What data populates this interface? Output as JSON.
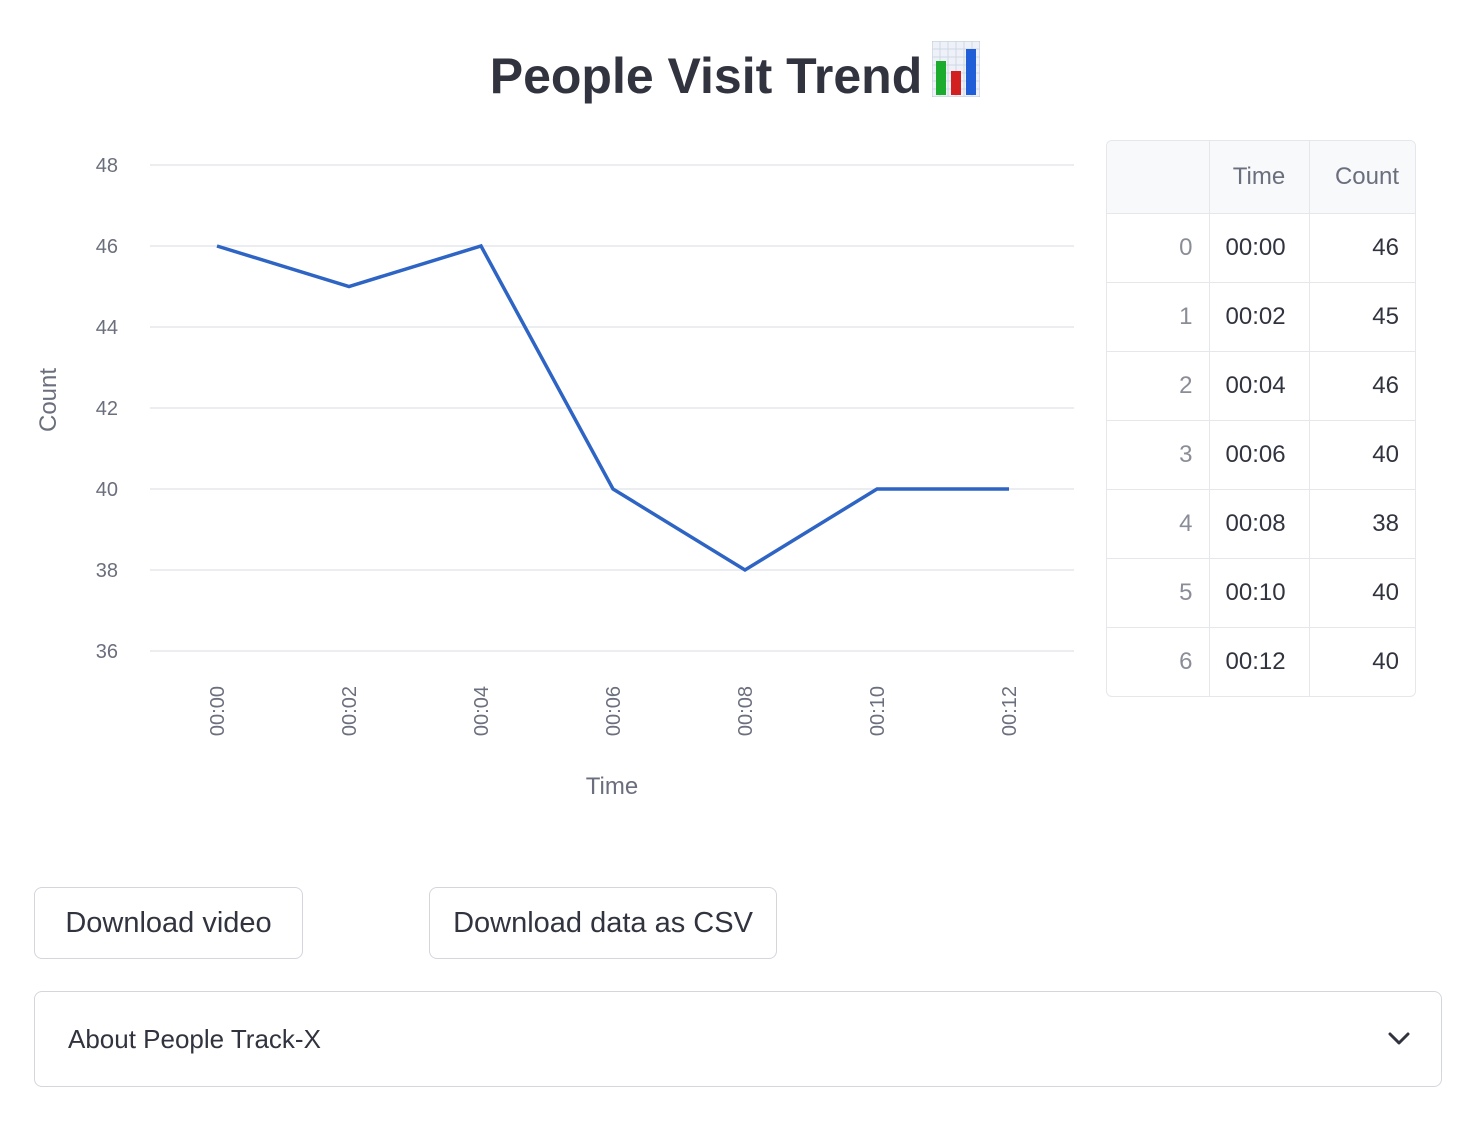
{
  "header": {
    "title": "People Visit Trend",
    "title_icon": "bar-chart-emoji-icon"
  },
  "chart_data": {
    "type": "line",
    "x": [
      "00:00",
      "00:02",
      "00:04",
      "00:06",
      "00:08",
      "00:10",
      "00:12"
    ],
    "series": [
      {
        "values": [
          46,
          45,
          46,
          40,
          38,
          40,
          40
        ],
        "color": "#2e64c4"
      }
    ],
    "xlabel": "Time",
    "ylabel": "Count",
    "ylim": [
      36,
      48
    ],
    "yticks": [
      36,
      38,
      40,
      42,
      44,
      46,
      48
    ],
    "grid": true,
    "x_tick_rotation": "vertical"
  },
  "table": {
    "columns": [
      "",
      "Time",
      "Count"
    ],
    "rows": [
      {
        "index": "0",
        "time": "00:00",
        "count": "46"
      },
      {
        "index": "1",
        "time": "00:02",
        "count": "45"
      },
      {
        "index": "2",
        "time": "00:04",
        "count": "46"
      },
      {
        "index": "3",
        "time": "00:06",
        "count": "40"
      },
      {
        "index": "4",
        "time": "00:08",
        "count": "38"
      },
      {
        "index": "5",
        "time": "00:10",
        "count": "40"
      },
      {
        "index": "6",
        "time": "00:12",
        "count": "40"
      }
    ]
  },
  "buttons": {
    "download_video": "Download video",
    "download_csv": "Download data as CSV"
  },
  "expander": {
    "label": "About People Track-X",
    "icon": "chevron-down-icon"
  },
  "colors": {
    "line": "#2e64c4",
    "grid": "#e6e7eb",
    "text": "#31333f",
    "muted": "#6b6f7d"
  }
}
